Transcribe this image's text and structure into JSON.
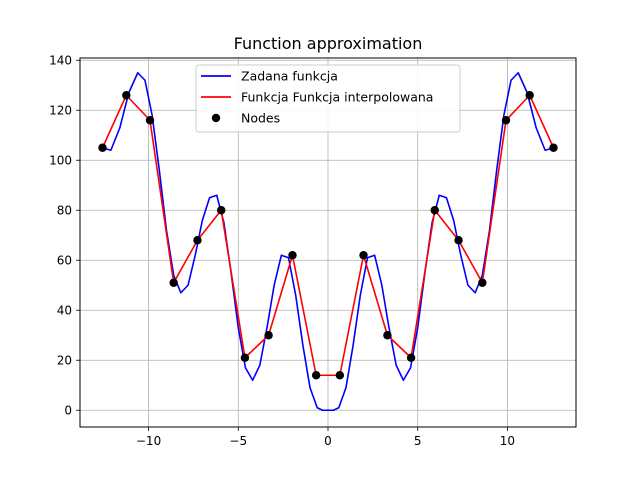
{
  "chart_data": {
    "type": "line",
    "title": "Function approximation",
    "xlabel": "",
    "ylabel": "",
    "xlim": [
      -13.82,
      13.82
    ],
    "ylim": [
      -6.7,
      140.9
    ],
    "grid": true,
    "legend_position": "top-center",
    "xticks": [
      -10,
      -5,
      0,
      5,
      10
    ],
    "xtick_labels": [
      "−10",
      "−5",
      "0",
      "5",
      "10"
    ],
    "yticks": [
      0,
      20,
      40,
      60,
      80,
      100,
      120,
      140
    ],
    "ytick_labels": [
      "0",
      "20",
      "40",
      "60",
      "80",
      "100",
      "120",
      "140"
    ],
    "series": [
      {
        "name": "Zadana funkcja",
        "kind": "line",
        "color": "#0000ff",
        "x": [
          -12.566,
          -12.1,
          -11.6,
          -11.1,
          -10.6,
          -10.2,
          -9.8,
          -9.4,
          -9.0,
          -8.6,
          -8.2,
          -7.8,
          -7.4,
          -7.0,
          -6.6,
          -6.2,
          -5.8,
          -5.4,
          -5.0,
          -4.6,
          -4.2,
          -3.8,
          -3.4,
          -3.0,
          -2.6,
          -2.2,
          -1.8,
          -1.4,
          -1.0,
          -0.6,
          -0.3,
          0.0,
          0.3,
          0.6,
          1.0,
          1.4,
          1.8,
          2.2,
          2.6,
          3.0,
          3.4,
          3.8,
          4.2,
          4.6,
          5.0,
          5.4,
          5.8,
          6.2,
          6.6,
          7.0,
          7.4,
          7.8,
          8.2,
          8.6,
          9.0,
          9.4,
          9.8,
          10.2,
          10.6,
          11.1,
          11.6,
          12.1,
          12.566
        ],
        "y": [
          105,
          104,
          113,
          127,
          135,
          132,
          118,
          96,
          72,
          54,
          47,
          50,
          62,
          76,
          85,
          86,
          75,
          55,
          33,
          17,
          12,
          18,
          33,
          50,
          62,
          61,
          46,
          26,
          9,
          1,
          0,
          0,
          0,
          1,
          9,
          26,
          46,
          61,
          62,
          50,
          33,
          18,
          12,
          17,
          33,
          55,
          75,
          86,
          85,
          76,
          62,
          50,
          47,
          54,
          72,
          96,
          118,
          132,
          135,
          127,
          113,
          104,
          105
        ]
      },
      {
        "name": "Funkcja Funkcja interpolowana",
        "kind": "line",
        "color": "#ff0000",
        "x": [
          -12.566,
          -11.24,
          -9.92,
          -8.6,
          -7.275,
          -5.95,
          -4.63,
          -3.31,
          -1.98,
          -0.66,
          0.66,
          1.98,
          3.31,
          4.63,
          5.95,
          7.275,
          8.6,
          9.92,
          11.24,
          12.566
        ],
        "y": [
          105,
          126,
          116,
          51,
          68,
          80,
          21,
          30,
          62,
          14,
          14,
          62,
          30,
          21,
          80,
          68,
          51,
          116,
          126,
          105
        ]
      },
      {
        "name": "Nodes",
        "kind": "scatter",
        "color": "#000000",
        "x": [
          -12.566,
          -11.24,
          -9.92,
          -8.6,
          -7.275,
          -5.95,
          -4.63,
          -3.31,
          -1.98,
          -0.66,
          0.66,
          1.98,
          3.31,
          4.63,
          5.95,
          7.275,
          8.6,
          9.92,
          11.24,
          12.566
        ],
        "y": [
          105,
          126,
          116,
          51,
          68,
          80,
          21,
          30,
          62,
          14,
          14,
          62,
          30,
          21,
          80,
          68,
          51,
          116,
          126,
          105
        ]
      }
    ]
  }
}
